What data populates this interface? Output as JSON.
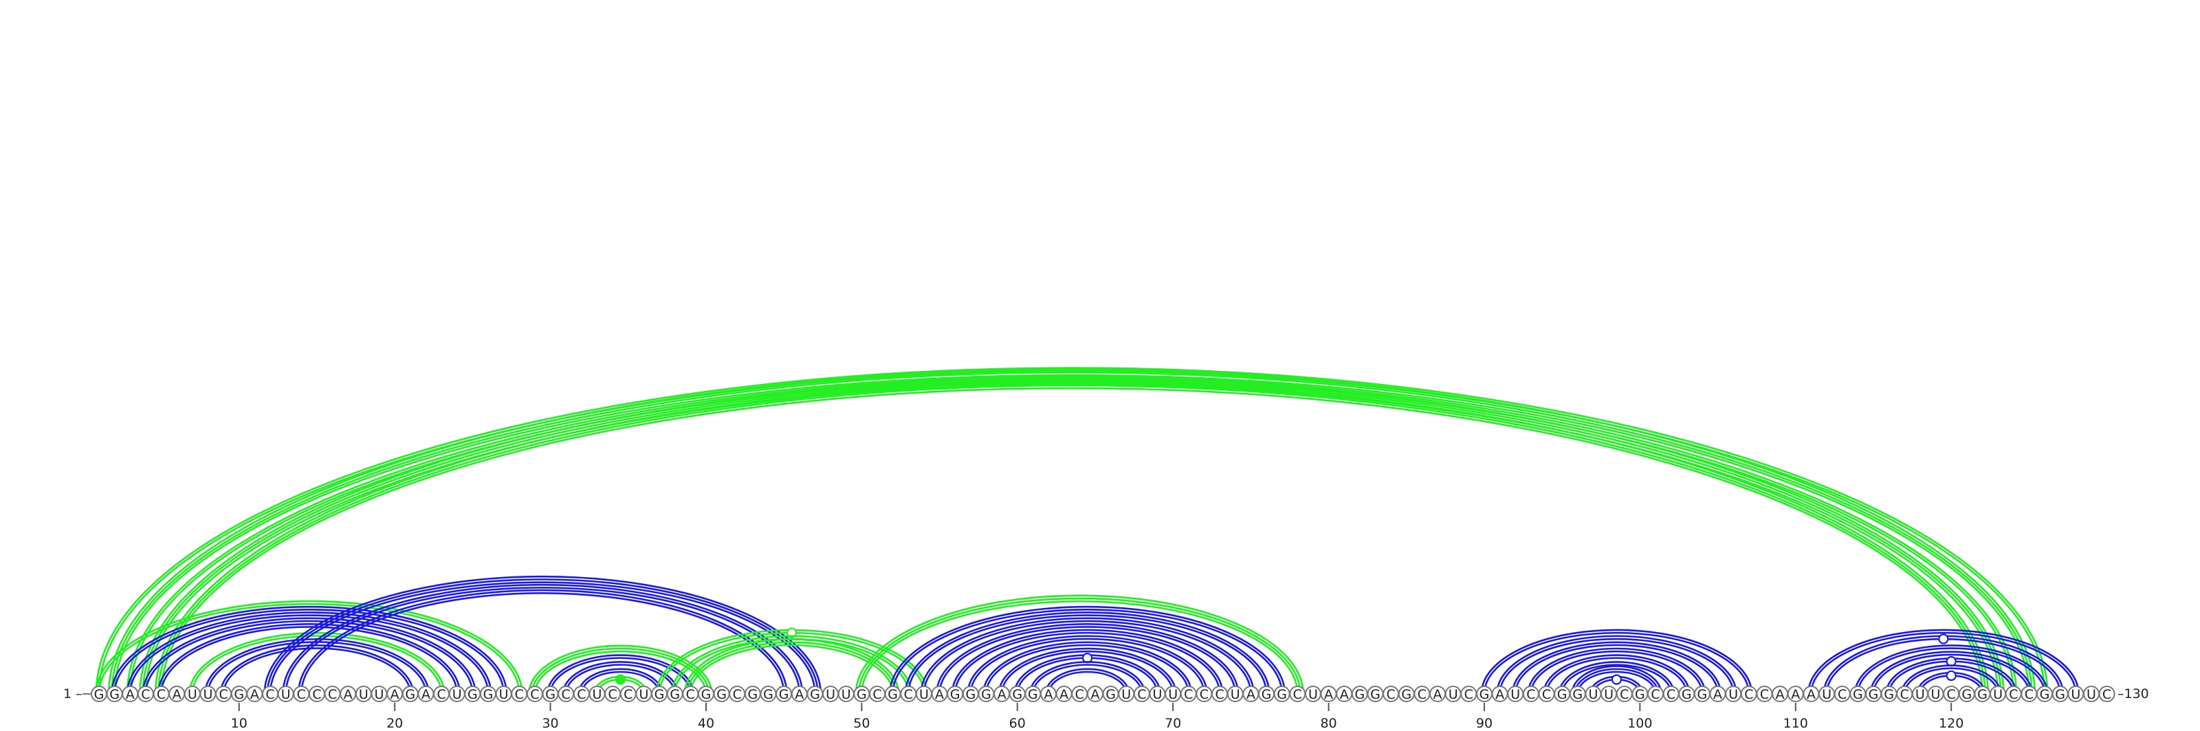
{
  "sequence": "GGACCAUUCGACUCCCAUUAGACUGGUCCGCCUCCUGGCGGCGGGAGUUGCGCUAGGGAGGAACAGUCUUCCCUAGGCUAAGGCGCAUCGAUCCGGUUCGCCGGAUCCAAAUCGGGCUUCGGUCCGGUUC",
  "start_label": "1 –",
  "end_label": "–130",
  "ticks": [
    {
      "pos": 10,
      "label": "10"
    },
    {
      "pos": 20,
      "label": "20"
    },
    {
      "pos": 30,
      "label": "30"
    },
    {
      "pos": 40,
      "label": "40"
    },
    {
      "pos": 50,
      "label": "50"
    },
    {
      "pos": 60,
      "label": "60"
    },
    {
      "pos": 70,
      "label": "70"
    },
    {
      "pos": 80,
      "label": "80"
    },
    {
      "pos": 90,
      "label": "90"
    },
    {
      "pos": 100,
      "label": "100"
    },
    {
      "pos": 110,
      "label": "110"
    },
    {
      "pos": 120,
      "label": "120"
    }
  ],
  "colors": {
    "green": "#22ee22",
    "blue": "#1a1ae0"
  },
  "arcs": [
    {
      "i": 1,
      "j": 126,
      "color": "green",
      "lines": 2
    },
    {
      "i": 2,
      "j": 125,
      "color": "green",
      "lines": 3
    },
    {
      "i": 3,
      "j": 124,
      "color": "green",
      "lines": 2
    },
    {
      "i": 4,
      "j": 123,
      "color": "green",
      "lines": 3
    },
    {
      "i": 5,
      "j": 122,
      "color": "green",
      "lines": 3
    },
    {
      "i": 1,
      "j": 28,
      "color": "green",
      "lines": 2
    },
    {
      "i": 2,
      "j": 27,
      "color": "blue",
      "lines": 2
    },
    {
      "i": 3,
      "j": 26,
      "color": "blue",
      "lines": 2
    },
    {
      "i": 4,
      "j": 25,
      "color": "blue",
      "lines": 2
    },
    {
      "i": 5,
      "j": 24,
      "color": "blue",
      "lines": 2
    },
    {
      "i": 7,
      "j": 23,
      "color": "green",
      "lines": 2
    },
    {
      "i": 8,
      "j": 22,
      "color": "blue",
      "lines": 2
    },
    {
      "i": 9,
      "j": 21,
      "color": "blue",
      "lines": 2
    },
    {
      "i": 12,
      "j": 47,
      "color": "blue",
      "lines": 3
    },
    {
      "i": 13,
      "j": 46,
      "color": "blue",
      "lines": 2
    },
    {
      "i": 14,
      "j": 45,
      "color": "blue",
      "lines": 2
    },
    {
      "i": 29,
      "j": 40,
      "color": "green",
      "lines": 3
    },
    {
      "i": 30,
      "j": 39,
      "color": "blue",
      "lines": 2
    },
    {
      "i": 31,
      "j": 38,
      "color": "blue",
      "lines": 2
    },
    {
      "i": 32,
      "j": 37,
      "color": "blue",
      "lines": 2
    },
    {
      "i": 33,
      "j": 36,
      "color": "green",
      "lines": 2,
      "marker": "filled"
    },
    {
      "i": 37,
      "j": 54,
      "color": "green",
      "lines": 2,
      "marker": "open"
    },
    {
      "i": 38,
      "j": 53,
      "color": "green",
      "lines": 2
    },
    {
      "i": 39,
      "j": 52,
      "color": "green",
      "lines": 3
    },
    {
      "i": 50,
      "j": 78,
      "color": "green",
      "lines": 3
    },
    {
      "i": 52,
      "j": 77,
      "color": "blue",
      "lines": 2
    },
    {
      "i": 53,
      "j": 76,
      "color": "blue",
      "lines": 2
    },
    {
      "i": 54,
      "j": 75,
      "color": "blue",
      "lines": 2
    },
    {
      "i": 55,
      "j": 74,
      "color": "blue",
      "lines": 2
    },
    {
      "i": 56,
      "j": 73,
      "color": "blue",
      "lines": 2
    },
    {
      "i": 57,
      "j": 72,
      "color": "blue",
      "lines": 2
    },
    {
      "i": 58,
      "j": 71,
      "color": "blue",
      "lines": 2
    },
    {
      "i": 59,
      "j": 70,
      "color": "blue",
      "lines": 2
    },
    {
      "i": 60,
      "j": 69,
      "color": "blue",
      "lines": 2,
      "marker": "open"
    },
    {
      "i": 61,
      "j": 68,
      "color": "blue",
      "lines": 2
    },
    {
      "i": 62,
      "j": 67,
      "color": "blue",
      "lines": 2
    },
    {
      "i": 90,
      "j": 107,
      "color": "blue",
      "lines": 2
    },
    {
      "i": 91,
      "j": 106,
      "color": "blue",
      "lines": 2
    },
    {
      "i": 92,
      "j": 105,
      "color": "blue",
      "lines": 2
    },
    {
      "i": 93,
      "j": 104,
      "color": "blue",
      "lines": 2
    },
    {
      "i": 94,
      "j": 103,
      "color": "blue",
      "lines": 2
    },
    {
      "i": 95,
      "j": 102,
      "color": "blue",
      "lines": 2
    },
    {
      "i": 96,
      "j": 101,
      "color": "blue",
      "lines": 3
    },
    {
      "i": 97,
      "j": 100,
      "color": "blue",
      "lines": 2,
      "marker": "open"
    },
    {
      "i": 111,
      "j": 128,
      "color": "blue",
      "lines": 2
    },
    {
      "i": 112,
      "j": 127,
      "color": "blue",
      "lines": 2,
      "marker": "open"
    },
    {
      "i": 114,
      "j": 126,
      "color": "blue",
      "lines": 2
    },
    {
      "i": 115,
      "j": 125,
      "color": "blue",
      "lines": 2
    },
    {
      "i": 116,
      "j": 124,
      "color": "blue",
      "lines": 2,
      "marker": "open"
    },
    {
      "i": 117,
      "j": 123,
      "color": "blue",
      "lines": 2
    },
    {
      "i": 118,
      "j": 122,
      "color": "blue",
      "lines": 2,
      "marker": "open"
    }
  ]
}
